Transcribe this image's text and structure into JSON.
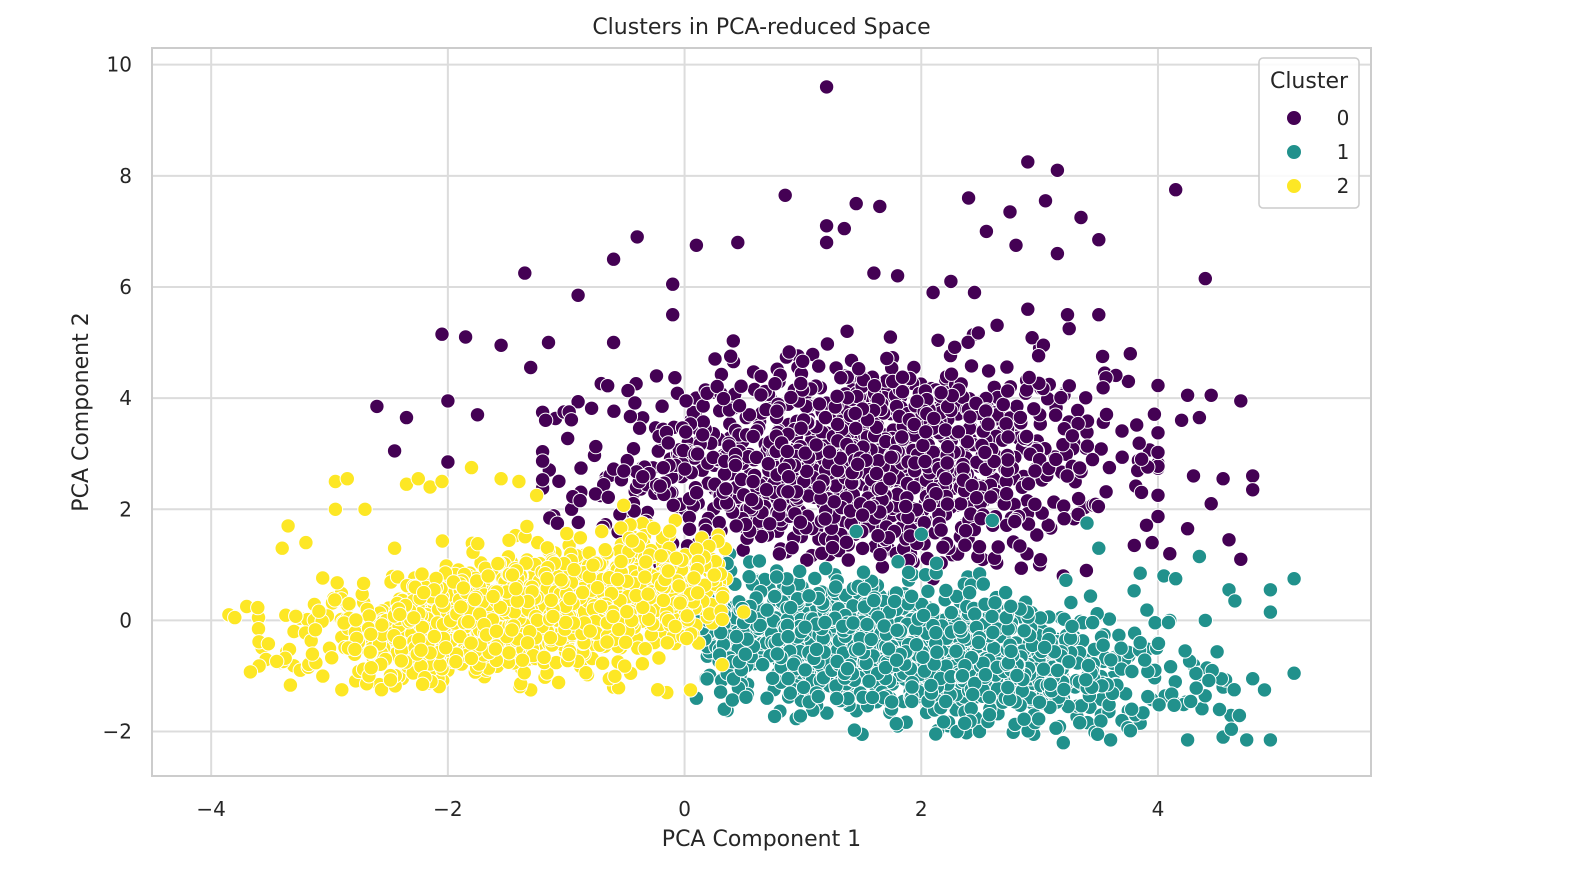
{
  "chart_data": {
    "type": "scatter",
    "title": "Clusters in PCA-reduced Space",
    "xlabel": "PCA Component 1",
    "ylabel": "PCA Component 2",
    "xlim": [
      -4.5,
      5.8
    ],
    "ylim": [
      -2.8,
      10.3
    ],
    "xticks": [
      -4,
      -2,
      0,
      2,
      4
    ],
    "yticks": [
      -2,
      0,
      2,
      4,
      6,
      8,
      10
    ],
    "grid": true,
    "legend": {
      "title": "Cluster",
      "placement": "top-right",
      "entries": [
        {
          "label": "0",
          "color": "#440154"
        },
        {
          "label": "1",
          "color": "#21918c"
        },
        {
          "label": "2",
          "color": "#fde725"
        }
      ]
    },
    "point_counts": {
      "cluster_0": 1400,
      "cluster_1": 1600,
      "cluster_2": 1500
    },
    "series": [
      {
        "name": "0",
        "color": "#440154",
        "points": [
          [
            1.2,
            9.6
          ],
          [
            2.9,
            8.25
          ],
          [
            3.15,
            8.1
          ],
          [
            0.85,
            7.65
          ],
          [
            4.15,
            7.75
          ],
          [
            1.45,
            7.5
          ],
          [
            1.65,
            7.45
          ],
          [
            3.05,
            7.55
          ],
          [
            2.4,
            7.6
          ],
          [
            1.2,
            7.1
          ],
          [
            1.35,
            7.05
          ],
          [
            2.75,
            7.35
          ],
          [
            3.35,
            7.25
          ],
          [
            2.55,
            7.0
          ],
          [
            1.2,
            6.8
          ],
          [
            -0.4,
            6.9
          ],
          [
            0.1,
            6.75
          ],
          [
            0.45,
            6.8
          ],
          [
            2.8,
            6.75
          ],
          [
            3.5,
            6.85
          ],
          [
            -0.6,
            6.5
          ],
          [
            3.15,
            6.6
          ],
          [
            -1.35,
            6.25
          ],
          [
            4.4,
            6.15
          ],
          [
            1.6,
            6.25
          ],
          [
            1.8,
            6.2
          ],
          [
            2.25,
            6.1
          ],
          [
            -0.9,
            5.85
          ],
          [
            -0.1,
            6.05
          ],
          [
            2.1,
            5.9
          ],
          [
            2.45,
            5.9
          ],
          [
            2.9,
            5.6
          ],
          [
            3.5,
            5.5
          ],
          [
            -2.05,
            5.15
          ],
          [
            -1.85,
            5.1
          ],
          [
            -1.55,
            4.95
          ],
          [
            -1.15,
            5.0
          ],
          [
            -0.6,
            5.0
          ],
          [
            -0.1,
            5.5
          ],
          [
            3.25,
            5.25
          ],
          [
            3.0,
            4.9
          ],
          [
            -1.3,
            4.55
          ],
          [
            3.55,
            4.45
          ],
          [
            3.75,
            4.3
          ],
          [
            4.45,
            4.05
          ],
          [
            4.25,
            4.05
          ],
          [
            4.7,
            3.95
          ],
          [
            -2.6,
            3.85
          ],
          [
            -2.35,
            3.65
          ],
          [
            -2.0,
            3.95
          ],
          [
            -1.75,
            3.7
          ],
          [
            -2.45,
            3.05
          ],
          [
            -2.0,
            2.85
          ],
          [
            4.2,
            3.6
          ],
          [
            4.35,
            3.65
          ],
          [
            4.55,
            2.55
          ],
          [
            4.8,
            2.6
          ],
          [
            4.8,
            2.35
          ],
          [
            4.3,
            2.6
          ],
          [
            4.45,
            2.1
          ],
          [
            4.25,
            1.65
          ],
          [
            4.6,
            1.45
          ],
          [
            4.7,
            1.1
          ],
          [
            4.1,
            1.2
          ],
          [
            3.95,
            1.4
          ],
          [
            3.8,
            1.35
          ],
          [
            3.2,
            0.8
          ],
          [
            3.0,
            1.0
          ],
          [
            2.1,
            0.75
          ],
          [
            1.9,
            1.0
          ]
        ],
        "cloud": {
          "x_range": [
            -1.2,
            4.0
          ],
          "y_range": [
            0.8,
            5.5
          ],
          "center": [
            1.5,
            2.8
          ],
          "extra_points": 1330
        }
      },
      {
        "name": "1",
        "color": "#21918c",
        "points": [
          [
            1.45,
            1.6
          ],
          [
            2.0,
            1.55
          ],
          [
            2.6,
            1.8
          ],
          [
            3.4,
            1.75
          ],
          [
            3.5,
            1.3
          ],
          [
            3.85,
            0.85
          ],
          [
            4.05,
            0.8
          ],
          [
            4.15,
            0.75
          ],
          [
            4.35,
            1.15
          ],
          [
            4.6,
            0.55
          ],
          [
            4.65,
            0.35
          ],
          [
            4.95,
            0.55
          ],
          [
            5.15,
            0.75
          ],
          [
            4.95,
            0.15
          ],
          [
            4.1,
            0.0
          ],
          [
            4.4,
            0.0
          ],
          [
            4.0,
            -0.4
          ],
          [
            4.3,
            -0.8
          ],
          [
            4.35,
            -0.95
          ],
          [
            4.55,
            -1.2
          ],
          [
            4.8,
            -1.05
          ],
          [
            4.9,
            -1.25
          ],
          [
            5.15,
            -0.95
          ],
          [
            4.75,
            -2.15
          ],
          [
            4.95,
            -2.15
          ],
          [
            4.55,
            -2.1
          ],
          [
            4.25,
            -2.15
          ],
          [
            3.6,
            -2.15
          ],
          [
            3.2,
            -2.2
          ],
          [
            2.95,
            -2.05
          ],
          [
            1.5,
            -2.05
          ],
          [
            0.95,
            -1.75
          ],
          [
            0.1,
            -1.4
          ],
          [
            0.05,
            -0.3
          ],
          [
            0.2,
            0.65
          ],
          [
            0.3,
            1.0
          ],
          [
            0.55,
            1.05
          ],
          [
            1.8,
            -1.9
          ],
          [
            2.2,
            -1.85
          ],
          [
            3.85,
            -1.85
          ]
        ],
        "cloud": {
          "x_range": [
            0.1,
            4.8
          ],
          "y_range": [
            -2.1,
            1.2
          ],
          "center": [
            1.7,
            -0.5
          ],
          "extra_points": 1560
        }
      },
      {
        "name": "2",
        "color": "#fde725",
        "points": [
          [
            -3.85,
            0.1
          ],
          [
            -3.7,
            0.25
          ],
          [
            -3.6,
            0.05
          ],
          [
            -3.4,
            1.3
          ],
          [
            -3.35,
            1.7
          ],
          [
            -3.2,
            1.4
          ],
          [
            -2.95,
            2.5
          ],
          [
            -2.85,
            2.55
          ],
          [
            -2.95,
            2.0
          ],
          [
            -2.7,
            2.0
          ],
          [
            -2.45,
            1.3
          ],
          [
            -2.35,
            2.45
          ],
          [
            -2.25,
            2.55
          ],
          [
            -2.15,
            2.4
          ],
          [
            -2.05,
            2.5
          ],
          [
            -1.8,
            2.75
          ],
          [
            -1.55,
            2.55
          ],
          [
            -1.4,
            2.5
          ],
          [
            -1.25,
            2.25
          ],
          [
            -0.7,
            1.6
          ],
          [
            -0.3,
            1.7
          ],
          [
            0.0,
            1.15
          ],
          [
            0.15,
            1.1
          ],
          [
            0.35,
            0.75
          ],
          [
            0.5,
            0.15
          ],
          [
            0.05,
            -1.25
          ],
          [
            -0.15,
            -1.3
          ],
          [
            -0.6,
            -1.2
          ],
          [
            -1.3,
            -1.25
          ],
          [
            -2.0,
            -0.9
          ],
          [
            -2.6,
            -0.65
          ],
          [
            -3.0,
            -0.5
          ],
          [
            -3.3,
            -0.2
          ],
          [
            -3.6,
            -0.15
          ],
          [
            -3.8,
            0.05
          ]
        ],
        "cloud": {
          "x_range": [
            -3.7,
            0.4
          ],
          "y_range": [
            -1.3,
            2.4
          ],
          "center": [
            -1.2,
            0.2
          ],
          "extra_points": 1465
        }
      }
    ]
  }
}
